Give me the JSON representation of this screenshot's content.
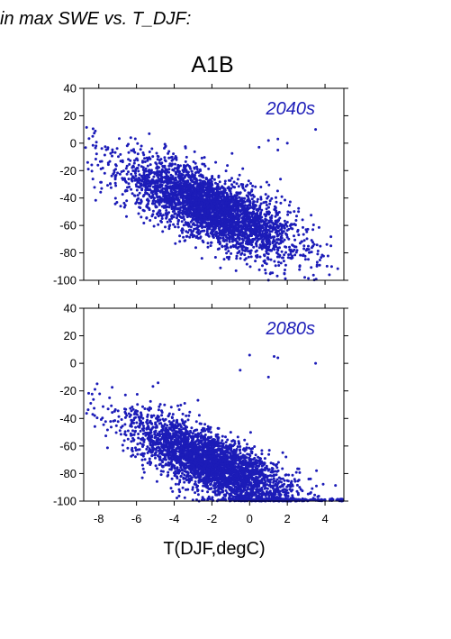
{
  "figure": {
    "title": "in max SWE vs. T_DJF:",
    "scenario": "A1B",
    "xlabel": "T(DJF,degC)",
    "point_color": "#1c1cb8"
  },
  "chart_data": [
    {
      "type": "scatter",
      "panel_label": "2040s",
      "xlim": [
        -8.8,
        5.0
      ],
      "ylim": [
        -100,
        40
      ],
      "xticks": [
        -8,
        -6,
        -4,
        -2,
        0,
        2,
        4
      ],
      "yticks": [
        -100,
        -80,
        -60,
        -40,
        -20,
        0,
        20,
        40
      ],
      "x_tick_labels_shown": false,
      "points_summary": {
        "n": 3500,
        "x_center": -2.0,
        "x_spread": 2.2,
        "y_at_x_min": -10,
        "y_slope_per_degC": -5.5,
        "y_spread": 12,
        "outliers": [
          [
            1.0,
            2
          ],
          [
            1.5,
            3
          ],
          [
            2.0,
            0
          ],
          [
            3.5,
            10
          ],
          [
            1.5,
            -5
          ],
          [
            0.5,
            -3
          ]
        ]
      }
    },
    {
      "type": "scatter",
      "panel_label": "2080s",
      "xlim": [
        -8.8,
        5.0
      ],
      "ylim": [
        -100,
        40
      ],
      "xticks": [
        -8,
        -6,
        -4,
        -2,
        0,
        2,
        4
      ],
      "yticks": [
        -100,
        -80,
        -60,
        -40,
        -20,
        0,
        20,
        40
      ],
      "x_tick_labels_shown": true,
      "points_summary": {
        "n": 3500,
        "x_center": -1.8,
        "x_spread": 2.2,
        "y_at_x_min": -32,
        "y_slope_per_degC": -6.0,
        "y_spread": 11,
        "outliers": [
          [
            0.0,
            6
          ],
          [
            1.3,
            5
          ],
          [
            1.5,
            4
          ],
          [
            3.5,
            0
          ],
          [
            -0.5,
            -5
          ],
          [
            1.0,
            -10
          ]
        ]
      }
    }
  ]
}
